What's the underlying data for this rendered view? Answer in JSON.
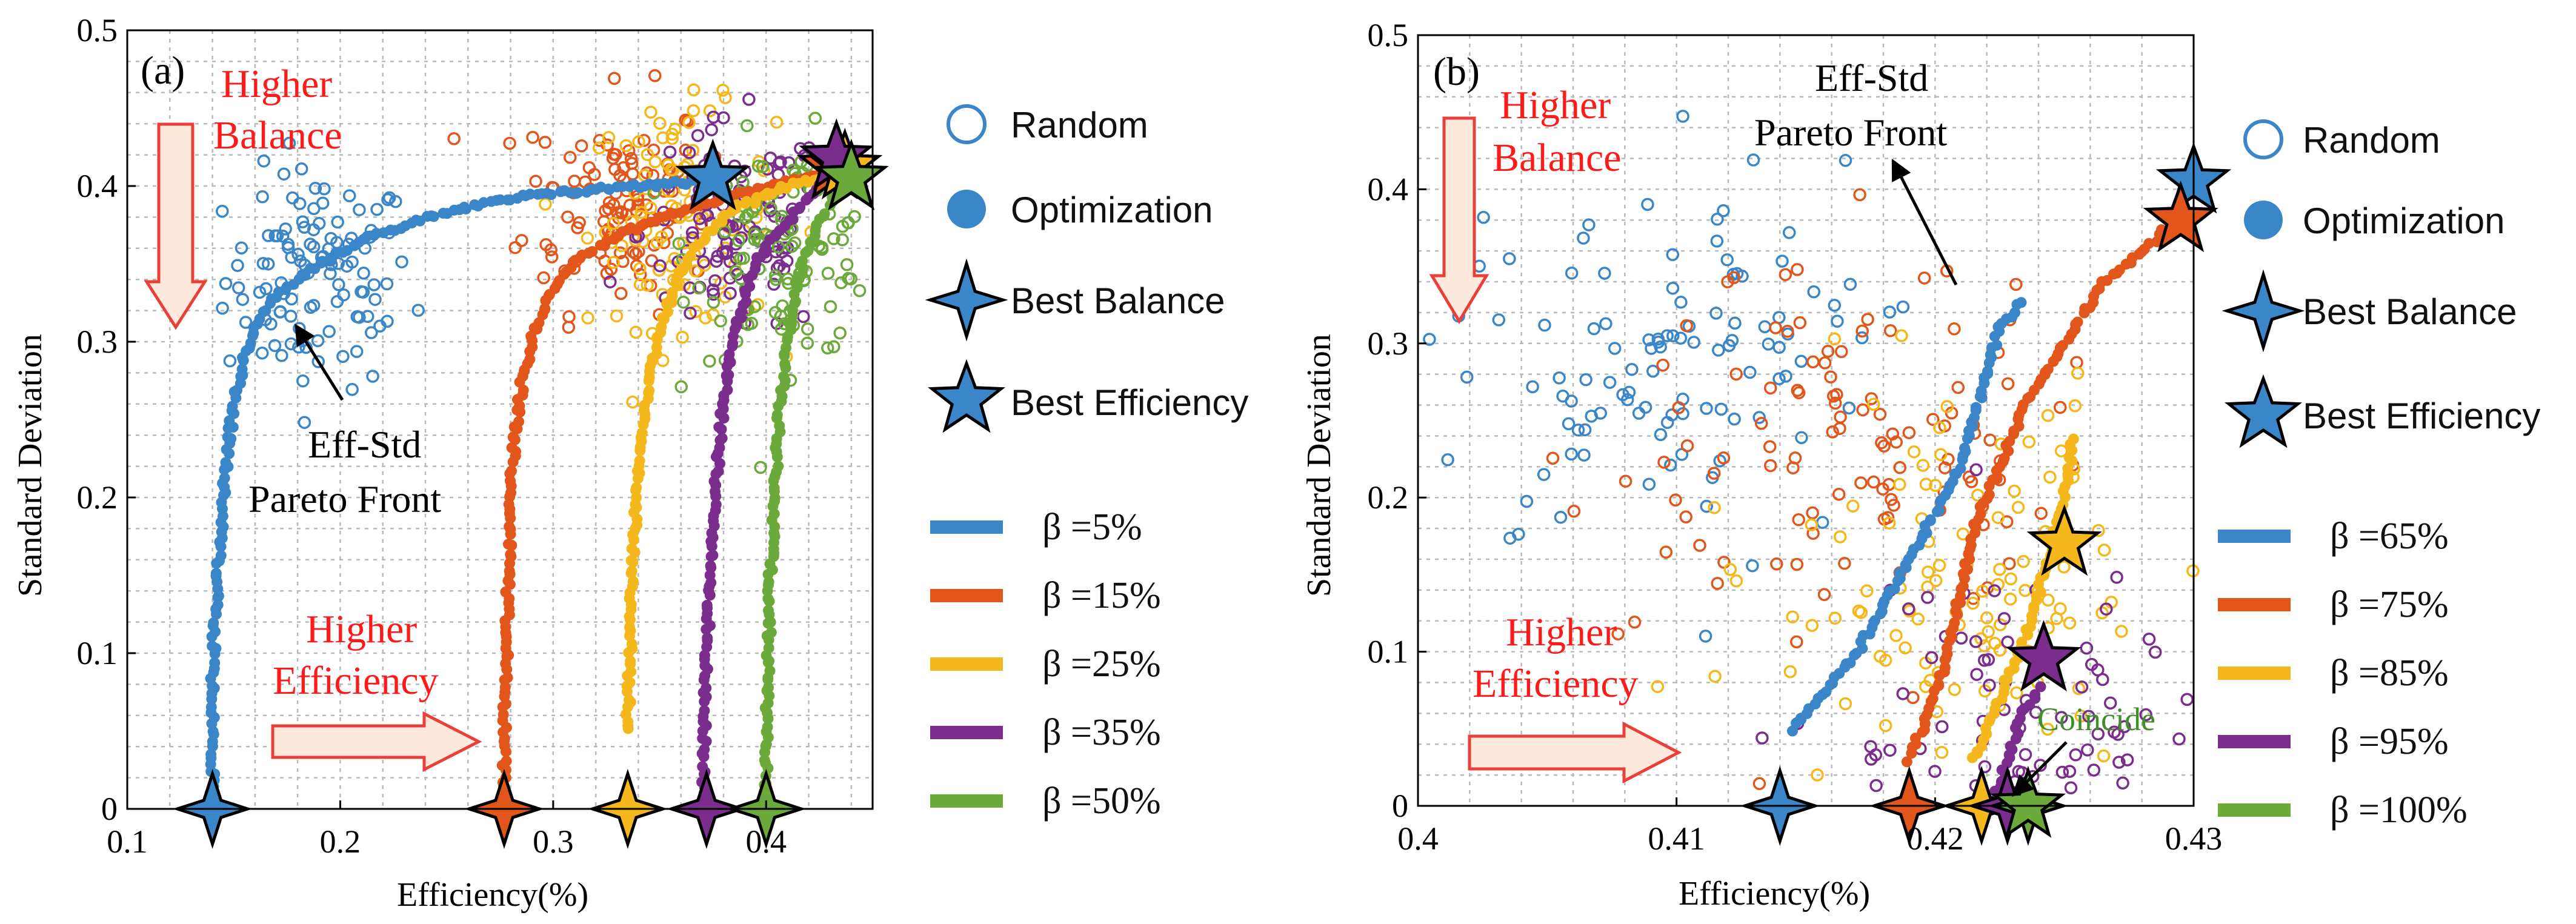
{
  "chart_data": [
    {
      "panel": "(a)",
      "type": "scatter",
      "xlabel": "Efficiency(%)",
      "ylabel": "Standard Deviation",
      "xlim": [
        0.1,
        0.45
      ],
      "ylim": [
        0,
        0.5
      ],
      "xticks": [
        "0.1",
        "0.2",
        "0.3",
        "0.4"
      ],
      "yticks": [
        "0",
        "0.1",
        "0.2",
        "0.3",
        "0.4",
        "0.5"
      ],
      "annotations": {
        "higher_balance": [
          "Higher",
          "Balance"
        ],
        "higher_efficiency": [
          "Higher",
          "Efficiency"
        ],
        "pareto": [
          "Eff-Std",
          "Pareto Front"
        ]
      },
      "legend_markers": [
        "Random",
        "Optimization",
        "Best Balance",
        "Best Efficiency"
      ],
      "series": [
        {
          "name": "β =5%",
          "color": "#3a86c8",
          "optimization": [
            [
              0.14,
              0.0
            ],
            [
              0.14,
              0.04
            ],
            [
              0.14,
              0.08
            ],
            [
              0.141,
              0.12
            ],
            [
              0.143,
              0.16
            ],
            [
              0.145,
              0.2
            ],
            [
              0.147,
              0.23
            ],
            [
              0.15,
              0.26
            ],
            [
              0.155,
              0.29
            ],
            [
              0.16,
              0.31
            ],
            [
              0.17,
              0.33
            ],
            [
              0.19,
              0.35
            ],
            [
              0.21,
              0.365
            ],
            [
              0.24,
              0.38
            ],
            [
              0.28,
              0.392
            ],
            [
              0.32,
              0.398
            ],
            [
              0.36,
              0.402
            ],
            [
              0.375,
              0.405
            ]
          ],
          "random_center": [
            0.19,
            0.34
          ],
          "best_balance": [
            0.14,
            0.0
          ],
          "best_efficiency": [
            0.375,
            0.405
          ]
        },
        {
          "name": "β =15%",
          "color": "#e2561b",
          "optimization": [
            [
              0.277,
              0.0
            ],
            [
              0.277,
              0.05
            ],
            [
              0.278,
              0.1
            ],
            [
              0.279,
              0.15
            ],
            [
              0.28,
              0.2
            ],
            [
              0.282,
              0.24
            ],
            [
              0.286,
              0.28
            ],
            [
              0.292,
              0.31
            ],
            [
              0.3,
              0.335
            ],
            [
              0.31,
              0.352
            ],
            [
              0.33,
              0.368
            ],
            [
              0.35,
              0.38
            ],
            [
              0.38,
              0.392
            ],
            [
              0.41,
              0.402
            ],
            [
              0.432,
              0.41
            ]
          ],
          "random_center": [
            0.33,
            0.39
          ],
          "best_balance": [
            0.277,
            0.0
          ],
          "best_efficiency": [
            0.432,
            0.412
          ]
        },
        {
          "name": "β =25%",
          "color": "#f4b81c",
          "optimization": [
            [
              0.335,
              0.05
            ],
            [
              0.336,
              0.1
            ],
            [
              0.337,
              0.15
            ],
            [
              0.339,
              0.2
            ],
            [
              0.342,
              0.25
            ],
            [
              0.347,
              0.29
            ],
            [
              0.353,
              0.32
            ],
            [
              0.36,
              0.345
            ],
            [
              0.37,
              0.365
            ],
            [
              0.385,
              0.385
            ],
            [
              0.41,
              0.4
            ],
            [
              0.437,
              0.41
            ]
          ],
          "random_center": [
            0.36,
            0.38
          ],
          "best_balance": [
            0.335,
            0.0
          ],
          "best_efficiency": [
            0.437,
            0.412
          ]
        },
        {
          "name": "β =35%",
          "color": "#7b2d8e",
          "optimization": [
            [
              0.37,
              0.0
            ],
            [
              0.371,
              0.05
            ],
            [
              0.372,
              0.1
            ],
            [
              0.374,
              0.15
            ],
            [
              0.376,
              0.2
            ],
            [
              0.379,
              0.25
            ],
            [
              0.383,
              0.29
            ],
            [
              0.388,
              0.32
            ],
            [
              0.395,
              0.35
            ],
            [
              0.405,
              0.37
            ],
            [
              0.42,
              0.392
            ],
            [
              0.433,
              0.412
            ]
          ],
          "random_center": [
            0.385,
            0.37
          ],
          "best_balance": [
            0.372,
            0.0
          ],
          "best_efficiency": [
            0.433,
            0.418
          ]
        },
        {
          "name": "β =50%",
          "color": "#6aa93a",
          "optimization": [
            [
              0.4,
              0.0
            ],
            [
              0.4,
              0.05
            ],
            [
              0.401,
              0.1
            ],
            [
              0.402,
              0.15
            ],
            [
              0.404,
              0.2
            ],
            [
              0.406,
              0.25
            ],
            [
              0.409,
              0.29
            ],
            [
              0.412,
              0.32
            ],
            [
              0.417,
              0.35
            ],
            [
              0.424,
              0.375
            ],
            [
              0.432,
              0.392
            ],
            [
              0.44,
              0.405
            ]
          ],
          "random_center": [
            0.41,
            0.36
          ],
          "best_balance": [
            0.4,
            0.0
          ],
          "best_efficiency": [
            0.44,
            0.405
          ]
        }
      ]
    },
    {
      "panel": "(b)",
      "type": "scatter",
      "xlabel": "Efficiency(%)",
      "ylabel": "Standard Deviation",
      "xlim": [
        0.4,
        0.43
      ],
      "ylim": [
        0,
        0.5
      ],
      "xticks": [
        "0.4",
        "0.41",
        "0.42",
        "0.43"
      ],
      "yticks": [
        "0",
        "0.1",
        "0.2",
        "0.3",
        "0.4",
        "0.5"
      ],
      "annotations": {
        "higher_balance": [
          "Higher",
          "Balance"
        ],
        "higher_efficiency": [
          "Higher",
          "Efficiency"
        ],
        "pareto": [
          "Eff-Std",
          "Pareto Front"
        ],
        "coincide": "Coincide"
      },
      "legend_markers": [
        "Random",
        "Optimization",
        "Best Balance",
        "Best Efficiency"
      ],
      "series": [
        {
          "name": "β =65%",
          "color": "#3a86c8",
          "optimization": [
            [
              0.4145,
              0.05
            ],
            [
              0.415,
              0.06
            ],
            [
              0.416,
              0.08
            ],
            [
              0.417,
              0.1
            ],
            [
              0.418,
              0.13
            ],
            [
              0.419,
              0.16
            ],
            [
              0.42,
              0.19
            ],
            [
              0.421,
              0.22
            ],
            [
              0.4215,
              0.25
            ],
            [
              0.422,
              0.28
            ],
            [
              0.4225,
              0.31
            ],
            [
              0.4235,
              0.33
            ]
          ],
          "random_center": [
            0.41,
            0.29
          ],
          "best_balance": [
            0.414,
            0.0
          ],
          "best_efficiency": [
            0.43,
            0.405
          ]
        },
        {
          "name": "β =75%",
          "color": "#e2561b",
          "optimization": [
            [
              0.419,
              0.03
            ],
            [
              0.4195,
              0.05
            ],
            [
              0.42,
              0.07
            ],
            [
              0.4205,
              0.1
            ],
            [
              0.421,
              0.14
            ],
            [
              0.4215,
              0.18
            ],
            [
              0.4225,
              0.22
            ],
            [
              0.4235,
              0.26
            ],
            [
              0.425,
              0.3
            ],
            [
              0.4265,
              0.34
            ],
            [
              0.428,
              0.36
            ],
            [
              0.429,
              0.375
            ]
          ],
          "random_center": [
            0.4165,
            0.24
          ],
          "best_balance": [
            0.419,
            0.0
          ],
          "best_efficiency": [
            0.4295,
            0.38
          ]
        },
        {
          "name": "β =85%",
          "color": "#f4b81c",
          "optimization": [
            [
              0.4215,
              0.03
            ],
            [
              0.422,
              0.05
            ],
            [
              0.4225,
              0.07
            ],
            [
              0.423,
              0.09
            ],
            [
              0.4235,
              0.11
            ],
            [
              0.424,
              0.14
            ],
            [
              0.4245,
              0.17
            ],
            [
              0.425,
              0.2
            ],
            [
              0.4252,
              0.22
            ],
            [
              0.4253,
              0.24
            ]
          ],
          "random_center": [
            0.421,
            0.14
          ],
          "best_balance": [
            0.4218,
            0.0
          ],
          "best_efficiency": [
            0.425,
            0.17
          ]
        },
        {
          "name": "β =95%",
          "color": "#7b2d8e",
          "optimization": [
            [
              0.4222,
              0.0
            ],
            [
              0.4226,
              0.02
            ],
            [
              0.423,
              0.04
            ],
            [
              0.4234,
              0.06
            ],
            [
              0.4238,
              0.07
            ],
            [
              0.4242,
              0.08
            ]
          ],
          "random_center": [
            0.4232,
            0.04
          ],
          "best_balance": [
            0.4228,
            0.0
          ],
          "best_efficiency": [
            0.4242,
            0.095
          ]
        },
        {
          "name": "β =100%",
          "color": "#6aa93a",
          "optimization": [
            [
              0.4236,
              0.0
            ]
          ],
          "random_center": [
            0.4236,
            0.0
          ],
          "best_balance": [
            0.4236,
            0.0
          ],
          "best_efficiency": [
            0.4236,
            0.0
          ]
        }
      ]
    }
  ],
  "colors": {
    "grid": "#b9b9b9",
    "axis": "#000000",
    "arrow_fill": "#fde8dc",
    "arrow_stroke": "#e8413a",
    "star_outline": "#000000",
    "legend_blue": "#3a86c8"
  }
}
